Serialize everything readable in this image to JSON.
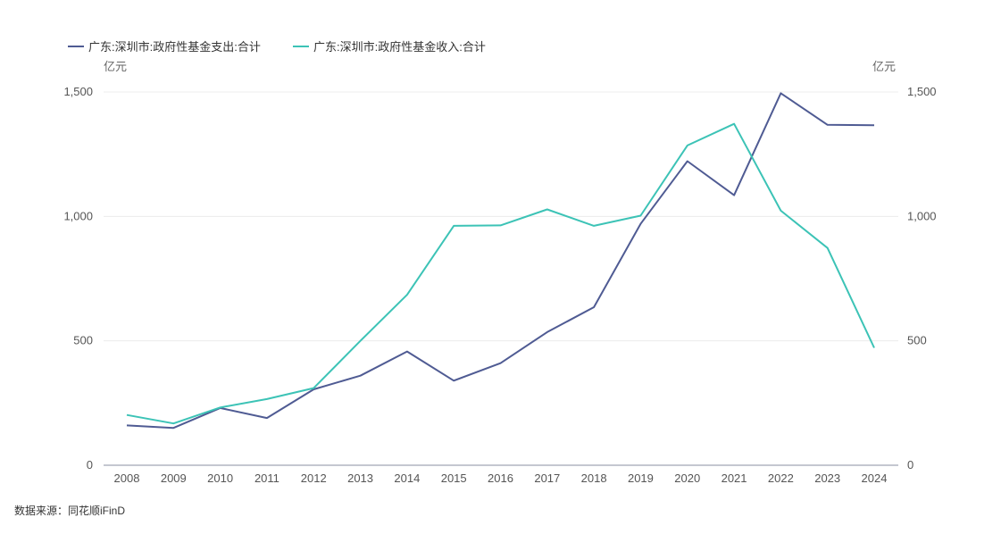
{
  "source": "数据来源：同花顺iFinD",
  "colors": {
    "series_expenditure": "#4f5b93",
    "series_revenue": "#3cc3b6",
    "grid": "#ececec",
    "axis": "#8a8fa0"
  },
  "chart_data": {
    "type": "line",
    "categories": [
      "2008",
      "2009",
      "2010",
      "2011",
      "2012",
      "2013",
      "2014",
      "2015",
      "2016",
      "2017",
      "2018",
      "2019",
      "2020",
      "2021",
      "2022",
      "2023",
      "2024"
    ],
    "series": [
      {
        "name": "广东:深圳市:政府性基金支出:合计",
        "color": "#4f5b93",
        "values": [
          160,
          150,
          230,
          190,
          305,
          360,
          457,
          340,
          410,
          535,
          635,
          970,
          1222,
          1085,
          1495,
          1368,
          1366
        ]
      },
      {
        "name": "广东:深圳市:政府性基金收入:合计",
        "color": "#3cc3b6",
        "values": [
          202,
          168,
          232,
          266,
          310,
          500,
          685,
          962,
          964,
          1028,
          962,
          1003,
          1285,
          1372,
          1023,
          873,
          472
        ]
      }
    ],
    "y_left": {
      "unit": "亿元",
      "ylim": [
        0,
        1500
      ],
      "ticks": [
        0,
        500,
        1000,
        1500
      ],
      "tick_labels": [
        "0",
        "500",
        "1,000",
        "1,500"
      ]
    },
    "y_right": {
      "unit": "亿元",
      "ylim": [
        0,
        1500
      ],
      "ticks": [
        0,
        500,
        1000,
        1500
      ],
      "tick_labels": [
        "0",
        "500",
        "1,000",
        "1,500"
      ]
    },
    "grid": true,
    "legend_position": "top-left"
  }
}
